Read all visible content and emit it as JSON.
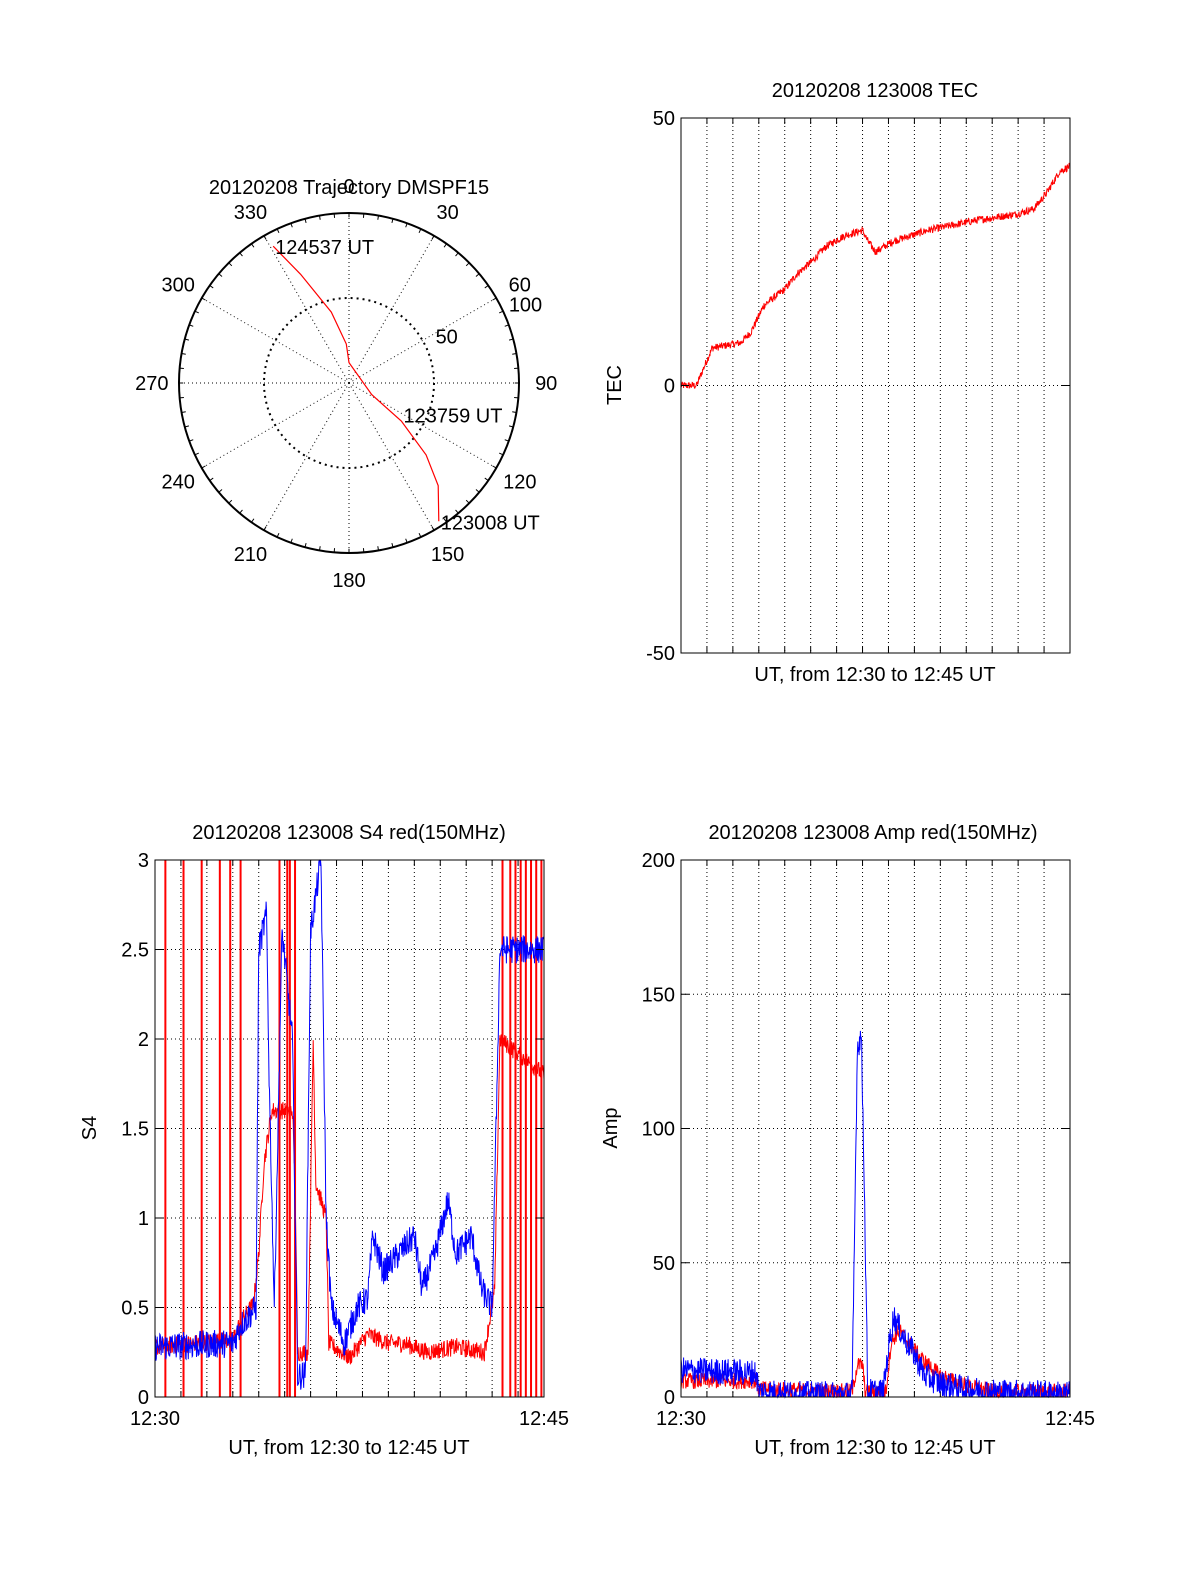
{
  "colors": {
    "red": "#ff0000",
    "blue": "#0000ff",
    "axis": "#000000",
    "grid": "#000000"
  },
  "chart_data": [
    {
      "id": "trajectory",
      "type": "polar",
      "title": "20120208 Trajectory DMSPF15",
      "angle_labels": [
        "0",
        "30",
        "60",
        "90",
        "120",
        "150",
        "180",
        "210",
        "240",
        "270",
        "300",
        "330"
      ],
      "angle_values": [
        0,
        30,
        60,
        90,
        120,
        150,
        180,
        210,
        240,
        270,
        300,
        330
      ],
      "radial_labels": [
        "50",
        "100"
      ],
      "radial_values": [
        50,
        100
      ],
      "rmax": 100,
      "annotations": [
        {
          "text": "124537 UT",
          "az": 331,
          "zen": 92
        },
        {
          "text": "123759 UT",
          "az": 121,
          "zen": 36
        },
        {
          "text": "123008 UT",
          "az": 147,
          "zen": 97
        }
      ],
      "track": {
        "color": "red",
        "points": [
          [
            331,
            92
          ],
          [
            336,
            70
          ],
          [
            346,
            43
          ],
          [
            356,
            23
          ],
          [
            360,
            12
          ],
          [
            117,
            15
          ],
          [
            126,
            38
          ],
          [
            133,
            62
          ],
          [
            139,
            80
          ],
          [
            147,
            97
          ]
        ]
      }
    },
    {
      "id": "tec",
      "type": "line",
      "title": "20120208 123008 TEC",
      "ylabel": "TEC",
      "xlabel": "UT, from 12:30 to 12:45 UT",
      "xlim": [
        0,
        15
      ],
      "ylim": [
        -50,
        50
      ],
      "yticks": [
        "-50",
        "0",
        "50"
      ],
      "ytick_values": [
        -50,
        0,
        50
      ],
      "xticks": [],
      "grid": "dotted vertical + horizontal at 0",
      "series": [
        {
          "color": "red",
          "noise": 0.7,
          "points": [
            [
              0,
              0
            ],
            [
              0.6,
              0
            ],
            [
              0.85,
              3
            ],
            [
              1.2,
              7
            ],
            [
              2.3,
              8
            ],
            [
              2.7,
              10
            ],
            [
              3.2,
              15
            ],
            [
              4,
              18
            ],
            [
              4.5,
              21
            ],
            [
              5,
              23
            ],
            [
              5.6,
              26
            ],
            [
              6.3,
              28
            ],
            [
              7.0,
              29
            ],
            [
              7.2,
              27
            ],
            [
              7.5,
              25
            ],
            [
              8.2,
              27
            ],
            [
              9.5,
              29
            ],
            [
              11.5,
              31
            ],
            [
              12.9,
              32
            ],
            [
              13.6,
              33
            ],
            [
              14.1,
              36
            ],
            [
              14.6,
              40
            ],
            [
              15,
              41
            ]
          ]
        }
      ]
    },
    {
      "id": "s4",
      "type": "line",
      "title": "20120208 123008 S4 red(150MHz)",
      "ylabel": "S4",
      "xlabel": "UT, from 12:30 to 12:45 UT",
      "xlim": [
        0,
        15
      ],
      "ylim": [
        0,
        3
      ],
      "yticks": [
        "0",
        "0.5",
        "1",
        "1.5",
        "2",
        "2.5",
        "3"
      ],
      "ytick_values": [
        0,
        0.5,
        1,
        1.5,
        2,
        2.5,
        3
      ],
      "xticks": [
        "12:30",
        "12:45"
      ],
      "xtick_values": [
        0,
        15
      ],
      "grid": "dotted",
      "spikes_red": [
        0.4,
        1.1,
        1.8,
        2.5,
        2.9,
        3.3,
        4.8,
        5.1,
        5.2,
        5.4,
        13.4,
        13.7,
        13.9,
        14.1,
        14.3,
        14.5,
        14.7,
        14.9
      ],
      "series": [
        {
          "color": "red",
          "noise": 0.05,
          "points": [
            [
              0,
              0.28
            ],
            [
              3,
              0.32
            ],
            [
              3.3,
              0.42
            ],
            [
              3.8,
              0.52
            ],
            [
              4.0,
              0.8
            ],
            [
              4.2,
              1.3
            ],
            [
              4.5,
              1.6
            ],
            [
              5.3,
              1.6
            ],
            [
              5.4,
              1.2
            ],
            [
              5.5,
              0.25
            ],
            [
              5.9,
              0.25
            ],
            [
              6.1,
              2.0
            ],
            [
              6.2,
              1.2
            ],
            [
              6.6,
              1.0
            ],
            [
              6.7,
              0.3
            ],
            [
              7.5,
              0.22
            ],
            [
              8.2,
              0.35
            ],
            [
              9,
              0.3
            ],
            [
              9.6,
              0.3
            ],
            [
              10.5,
              0.25
            ],
            [
              11.6,
              0.28
            ],
            [
              12.7,
              0.25
            ],
            [
              13.1,
              0.6
            ],
            [
              13.3,
              2.0
            ],
            [
              15,
              1.8
            ]
          ]
        },
        {
          "color": "blue",
          "noise": 0.08,
          "points": [
            [
              0,
              0.28
            ],
            [
              3,
              0.3
            ],
            [
              3.3,
              0.4
            ],
            [
              3.9,
              0.5
            ],
            [
              4.0,
              2.5
            ],
            [
              4.3,
              2.7
            ],
            [
              4.4,
              1.8
            ],
            [
              4.6,
              0.5
            ],
            [
              4.9,
              2.6
            ],
            [
              5.3,
              2.0
            ],
            [
              5.5,
              0.12
            ],
            [
              5.8,
              0.12
            ],
            [
              6.0,
              2.6
            ],
            [
              6.4,
              3.0
            ],
            [
              6.6,
              1.0
            ],
            [
              6.8,
              0.5
            ],
            [
              7.3,
              0.3
            ],
            [
              7.8,
              0.5
            ],
            [
              8.2,
              0.55
            ],
            [
              8.4,
              0.9
            ],
            [
              8.8,
              0.7
            ],
            [
              9.4,
              0.8
            ],
            [
              10.0,
              0.9
            ],
            [
              10.3,
              0.6
            ],
            [
              10.8,
              0.8
            ],
            [
              11.3,
              1.1
            ],
            [
              11.6,
              0.8
            ],
            [
              12.2,
              0.9
            ],
            [
              12.6,
              0.6
            ],
            [
              13.0,
              0.5
            ],
            [
              13.3,
              2.5
            ],
            [
              15,
              2.5
            ]
          ]
        }
      ]
    },
    {
      "id": "amp",
      "type": "line",
      "title": "20120208 123008 Amp red(150MHz)",
      "ylabel": "Amp",
      "xlabel": "UT, from 12:30 to 12:45 UT",
      "xlim": [
        0,
        15
      ],
      "ylim": [
        0,
        200
      ],
      "yticks": [
        "0",
        "50",
        "100",
        "150",
        "200"
      ],
      "ytick_values": [
        0,
        50,
        100,
        150,
        200
      ],
      "xticks": [
        "12:30",
        "12:45"
      ],
      "xtick_values": [
        0,
        15
      ],
      "grid": "dotted",
      "series": [
        {
          "color": "red",
          "noise": 3,
          "points": [
            [
              0,
              6
            ],
            [
              2.9,
              6
            ],
            [
              3.0,
              3
            ],
            [
              6.6,
              2
            ],
            [
              6.8,
              12
            ],
            [
              7.0,
              12
            ],
            [
              7.1,
              2
            ],
            [
              7.9,
              2
            ],
            [
              8.1,
              20
            ],
            [
              8.4,
              25
            ],
            [
              8.8,
              20
            ],
            [
              9.3,
              14
            ],
            [
              10,
              8
            ],
            [
              11,
              4
            ],
            [
              12,
              2
            ],
            [
              15,
              2
            ]
          ]
        },
        {
          "color": "blue",
          "noise": 5,
          "points": [
            [
              0,
              10
            ],
            [
              2.9,
              9
            ],
            [
              3.0,
              2
            ],
            [
              4.5,
              1
            ],
            [
              6.5,
              1
            ],
            [
              6.6,
              2
            ],
            [
              6.8,
              130
            ],
            [
              6.95,
              135
            ],
            [
              7.05,
              90
            ],
            [
              7.1,
              60
            ],
            [
              7.2,
              2
            ],
            [
              7.8,
              2
            ],
            [
              8.0,
              18
            ],
            [
              8.2,
              30
            ],
            [
              8.6,
              22
            ],
            [
              9.0,
              16
            ],
            [
              9.4,
              8
            ],
            [
              10,
              5
            ],
            [
              11,
              3
            ],
            [
              12,
              2
            ],
            [
              15,
              1
            ]
          ]
        }
      ]
    }
  ]
}
